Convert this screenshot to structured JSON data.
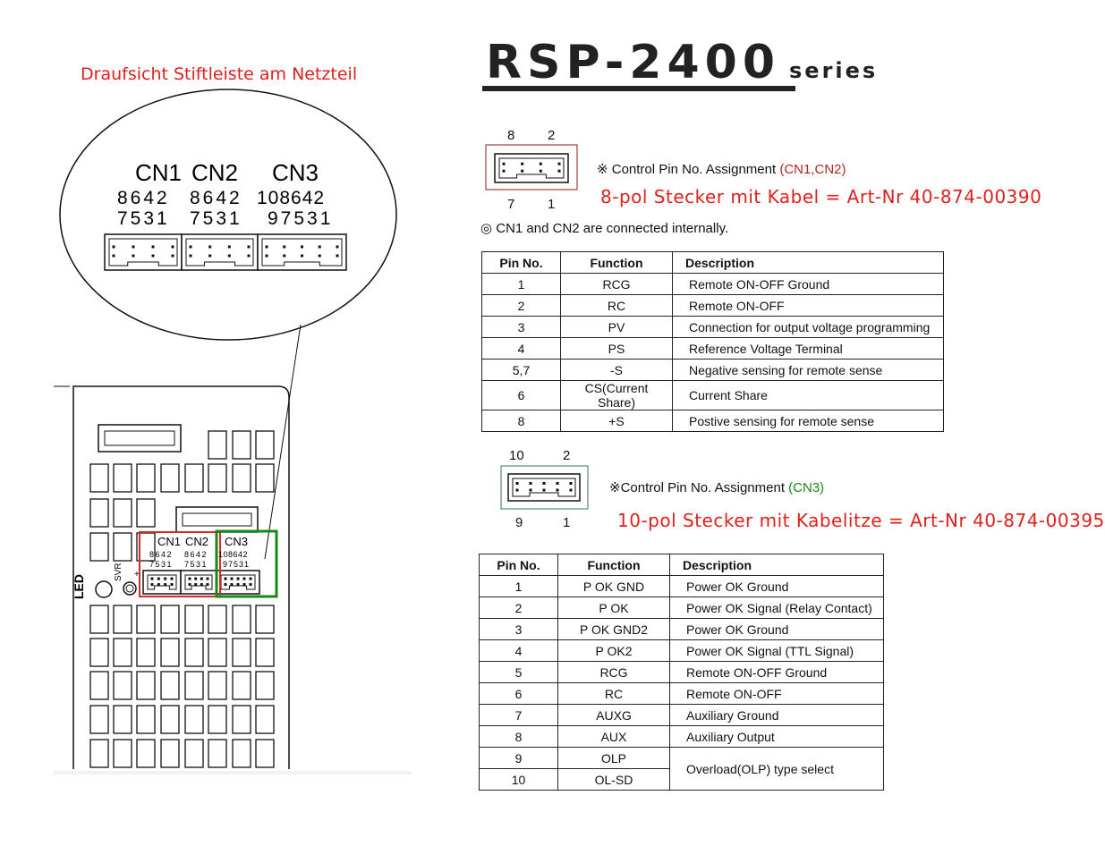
{
  "left_heading": "Draufsicht Stiftleiste am Netzteil",
  "title": {
    "main": "RSP-2400",
    "suffix": "series"
  },
  "zoom_view": {
    "labels": [
      "CN1",
      "CN2",
      "CN3"
    ],
    "cn1_top": "8642",
    "cn1_bottom": "7531",
    "cn2_top": "8642",
    "cn2_bottom": "7531",
    "cn3_top": "108642",
    "cn3_bottom": "97531"
  },
  "panel": {
    "led": "LED",
    "svr": "SVR",
    "plus": "+",
    "cn1": "CN1",
    "cn2": "CN2",
    "cn3": "CN3",
    "cn1_top": "8642",
    "cn1_bottom": "7531",
    "cn2_top": "8642",
    "cn2_bottom": "7531",
    "cn3_top": "108642",
    "cn3_bottom": "97531",
    "highlight_colors": {
      "cn1_cn2": "#d42a2a",
      "cn3": "#168a16"
    }
  },
  "cn12": {
    "pin_top_left": "8",
    "pin_top_right": "2",
    "pin_bottom_left": "7",
    "pin_bottom_right": "1",
    "assignment_prefix": "※ Control Pin No. Assignment ",
    "assignment_ids": "(CN1,CN2)",
    "order_note": "8-pol Stecker mit Kabel = Art-Nr 40-874-00390",
    "connected_note": "◎ CN1 and CN2 are connected internally.",
    "headers": [
      "Pin No.",
      "Function",
      "Description"
    ],
    "rows": [
      [
        "1",
        "RCG",
        "Remote ON-OFF Ground"
      ],
      [
        "2",
        "RC",
        "Remote ON-OFF"
      ],
      [
        "3",
        "PV",
        "Connection for output voltage programming"
      ],
      [
        "4",
        "PS",
        "Reference Voltage Terminal"
      ],
      [
        "5,7",
        "-S",
        "Negative sensing for remote sense"
      ],
      [
        "6",
        "CS(Current Share)",
        "Current Share"
      ],
      [
        "8",
        "+S",
        "Postive sensing for remote sense"
      ]
    ]
  },
  "cn3": {
    "pin_top_left": "10",
    "pin_top_right": "2",
    "pin_bottom_left": "9",
    "pin_bottom_right": "1",
    "assignment_prefix": "※Control Pin No. Assignment ",
    "assignment_ids": "(CN3)",
    "order_note": "10-pol Stecker mit Kabelitze = Art-Nr 40-874-00395",
    "headers": [
      "Pin No.",
      "Function",
      "Description"
    ],
    "rows": [
      [
        "1",
        "P OK GND",
        "Power OK Ground"
      ],
      [
        "2",
        "P OK",
        "Power OK Signal (Relay Contact)"
      ],
      [
        "3",
        "P OK GND2",
        "Power OK Ground"
      ],
      [
        "4",
        "P OK2",
        "Power OK Signal (TTL Signal)"
      ],
      [
        "5",
        "RCG",
        "Remote ON-OFF Ground"
      ],
      [
        "6",
        "RC",
        "Remote ON-OFF"
      ],
      [
        "7",
        "AUXG",
        "Auxiliary Ground"
      ],
      [
        "8",
        "AUX",
        "Auxiliary Output"
      ],
      [
        "9",
        "OLP",
        "Overload(OLP) type select"
      ],
      [
        "10",
        "OL-SD",
        ""
      ]
    ]
  }
}
